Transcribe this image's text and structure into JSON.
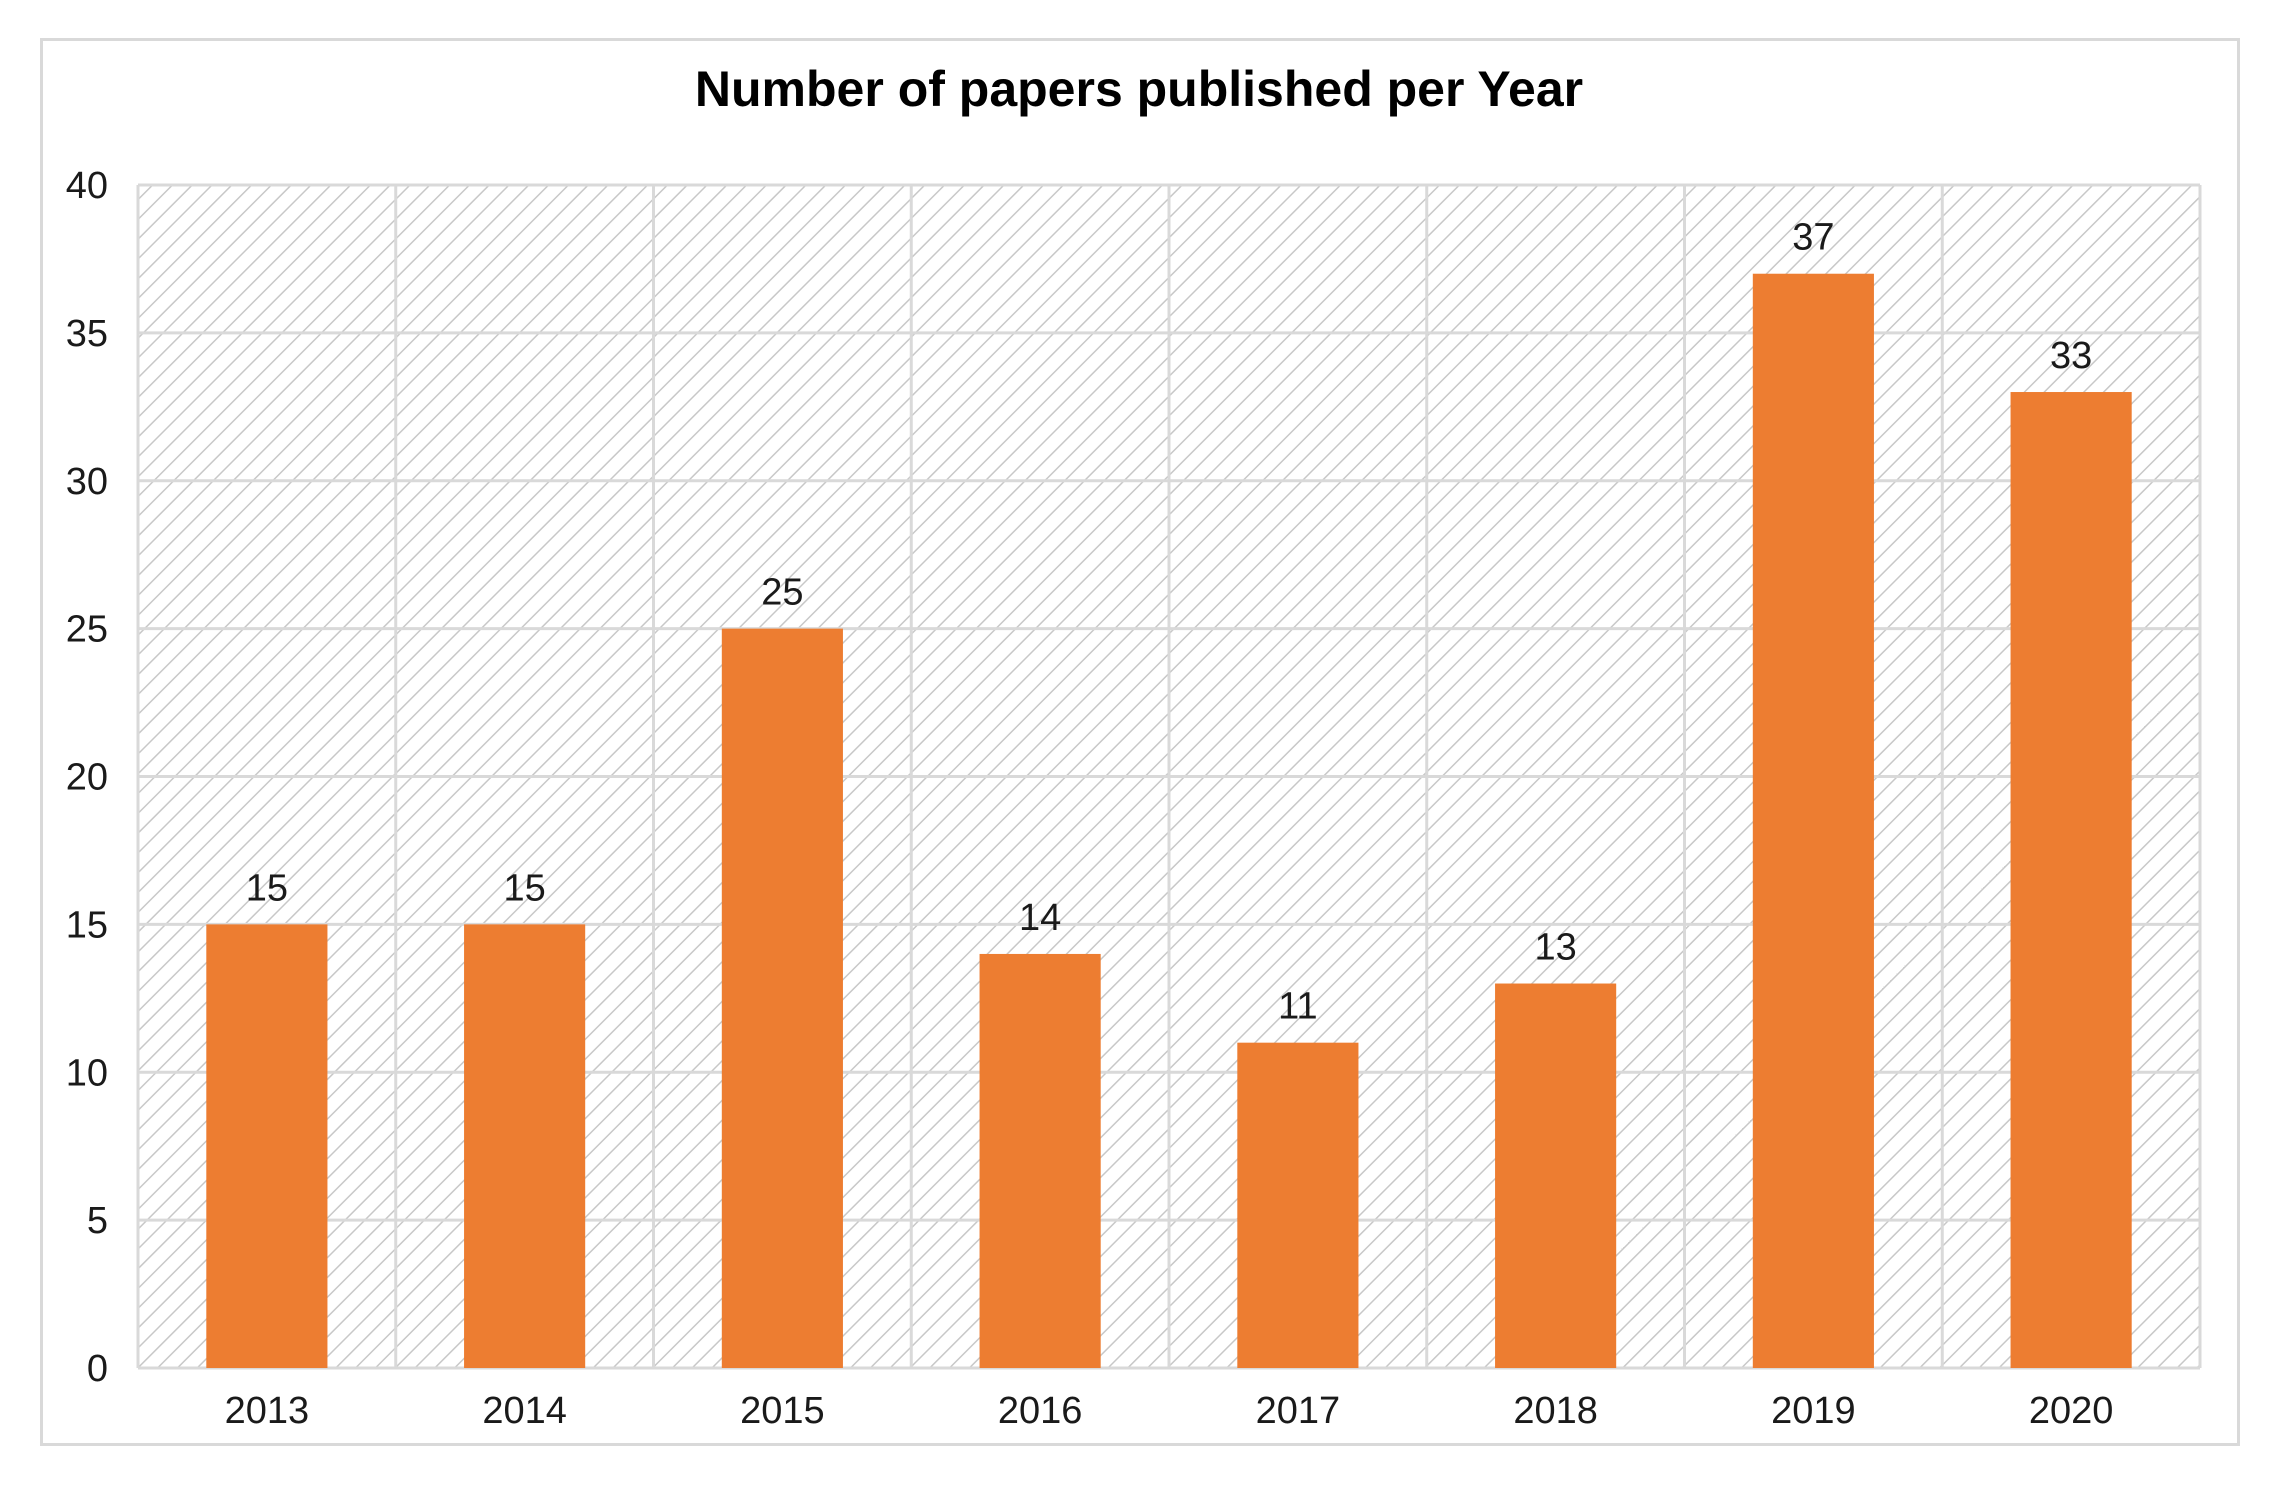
{
  "chart_data": {
    "type": "bar",
    "title": "Number of papers published per Year",
    "xlabel": "",
    "ylabel": "",
    "categories": [
      "2013",
      "2014",
      "2015",
      "2016",
      "2017",
      "2018",
      "2019",
      "2020"
    ],
    "values": [
      15,
      15,
      25,
      14,
      11,
      13,
      37,
      33
    ],
    "ylim": [
      0,
      40
    ],
    "yticks": [
      0,
      5,
      10,
      15,
      20,
      25,
      30,
      35,
      40
    ],
    "grid": true,
    "legend": "none",
    "bar_color": "#ed7d31",
    "gridline_color": "#d9d9d9",
    "hatch_color": "#c8c8c8"
  }
}
